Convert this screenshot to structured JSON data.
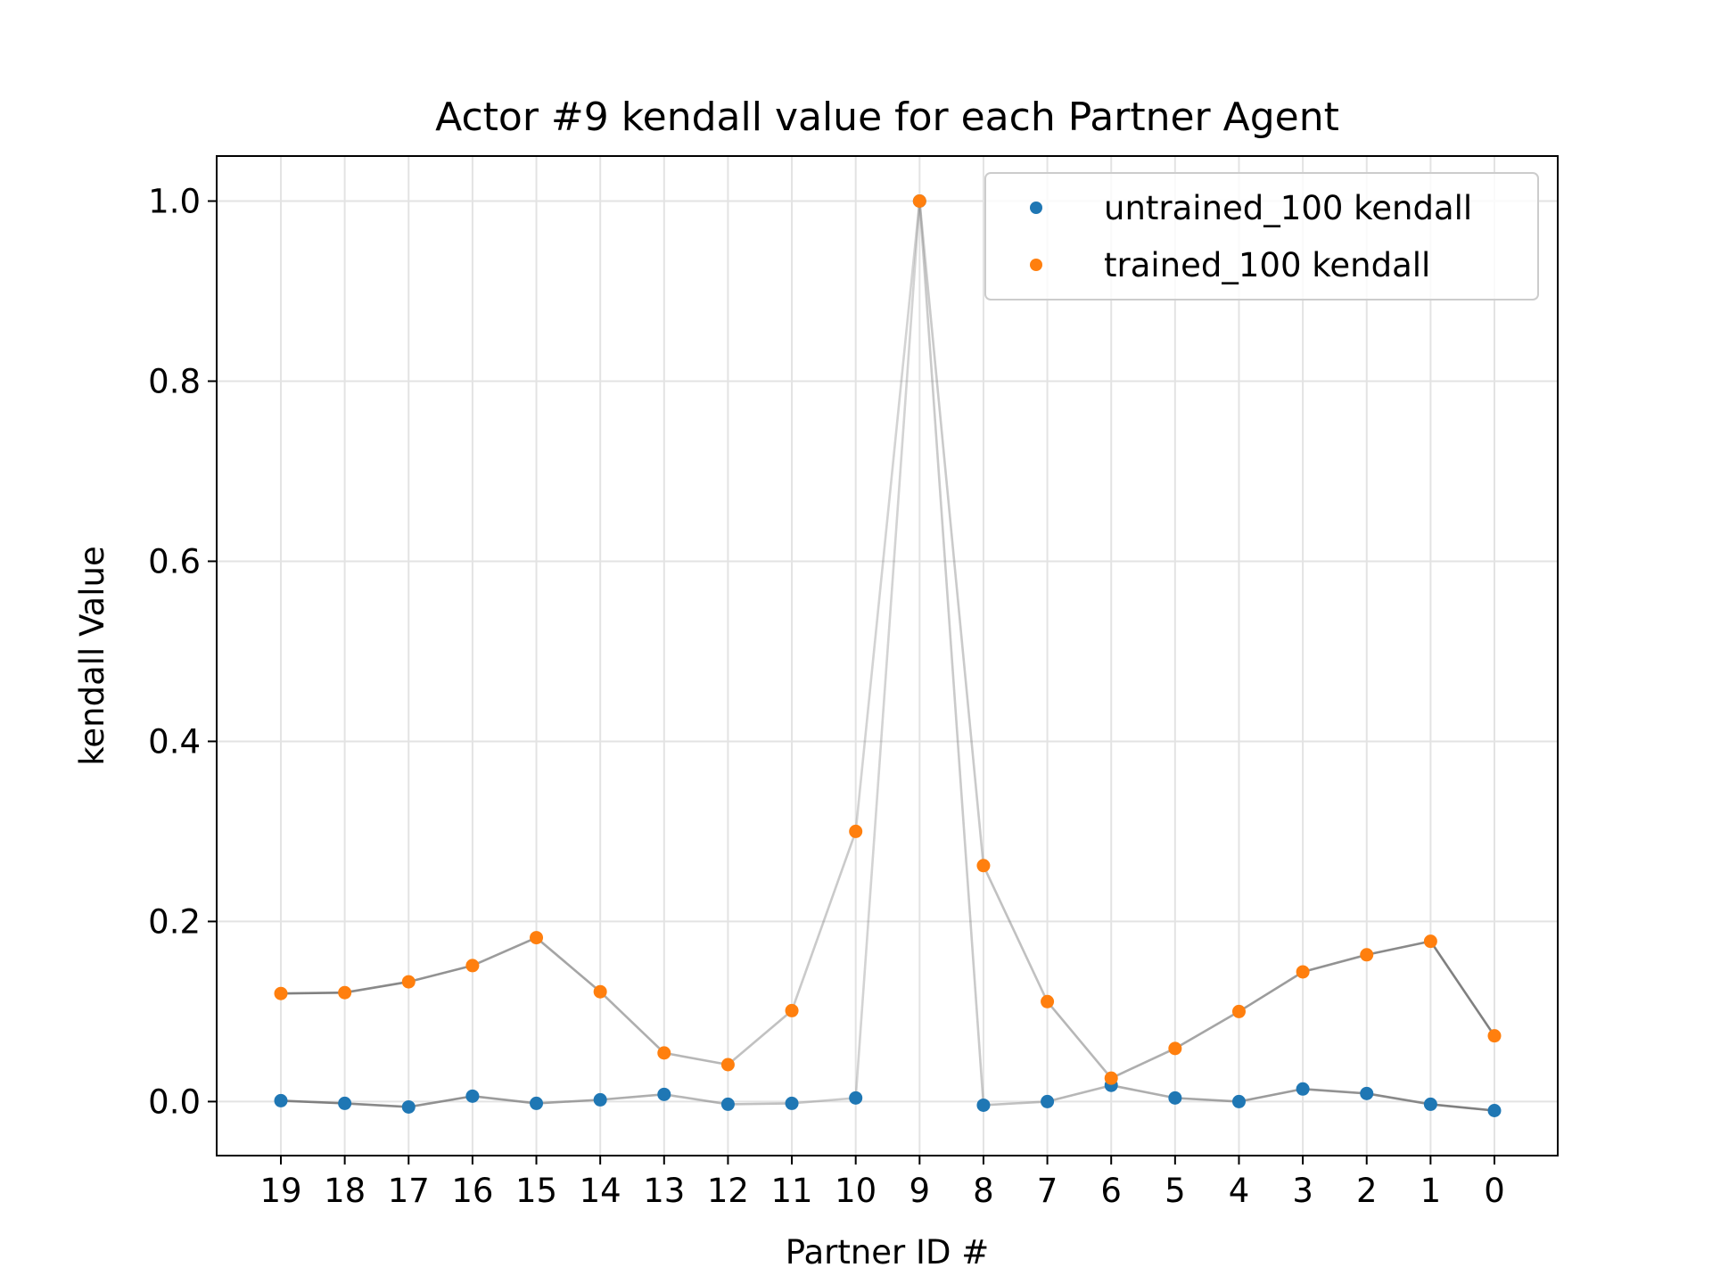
{
  "chart_data": {
    "type": "scatter",
    "title": "Actor #9 kendall value for each Partner Agent",
    "xlabel": "Partner ID #",
    "ylabel": "kendall Value",
    "categories": [
      "19",
      "18",
      "17",
      "16",
      "15",
      "14",
      "13",
      "12",
      "11",
      "10",
      "9",
      "8",
      "7",
      "6",
      "5",
      "4",
      "3",
      "2",
      "1",
      "0"
    ],
    "ylim": [
      -0.06,
      1.05
    ],
    "yticks": [
      "0.0",
      "0.2",
      "0.4",
      "0.6",
      "0.8",
      "1.0"
    ],
    "grid": true,
    "legend_position": "top-right",
    "series": [
      {
        "name": "untrained_100 kendall",
        "color": "#1f77b4",
        "values": [
          0.001,
          -0.002,
          -0.006,
          0.006,
          -0.002,
          0.002,
          0.008,
          -0.003,
          -0.002,
          0.004,
          1.0,
          -0.004,
          0.0,
          0.018,
          0.004,
          0.0,
          0.014,
          0.009,
          -0.003,
          -0.01
        ]
      },
      {
        "name": "trained_100 kendall",
        "color": "#ff7f0e",
        "values": [
          0.12,
          0.121,
          0.133,
          0.151,
          0.182,
          0.122,
          0.054,
          0.041,
          0.101,
          0.3,
          1.0,
          0.262,
          0.111,
          0.026,
          0.059,
          0.1,
          0.144,
          0.163,
          0.178,
          0.073
        ]
      }
    ],
    "connector_color": "#808080"
  }
}
